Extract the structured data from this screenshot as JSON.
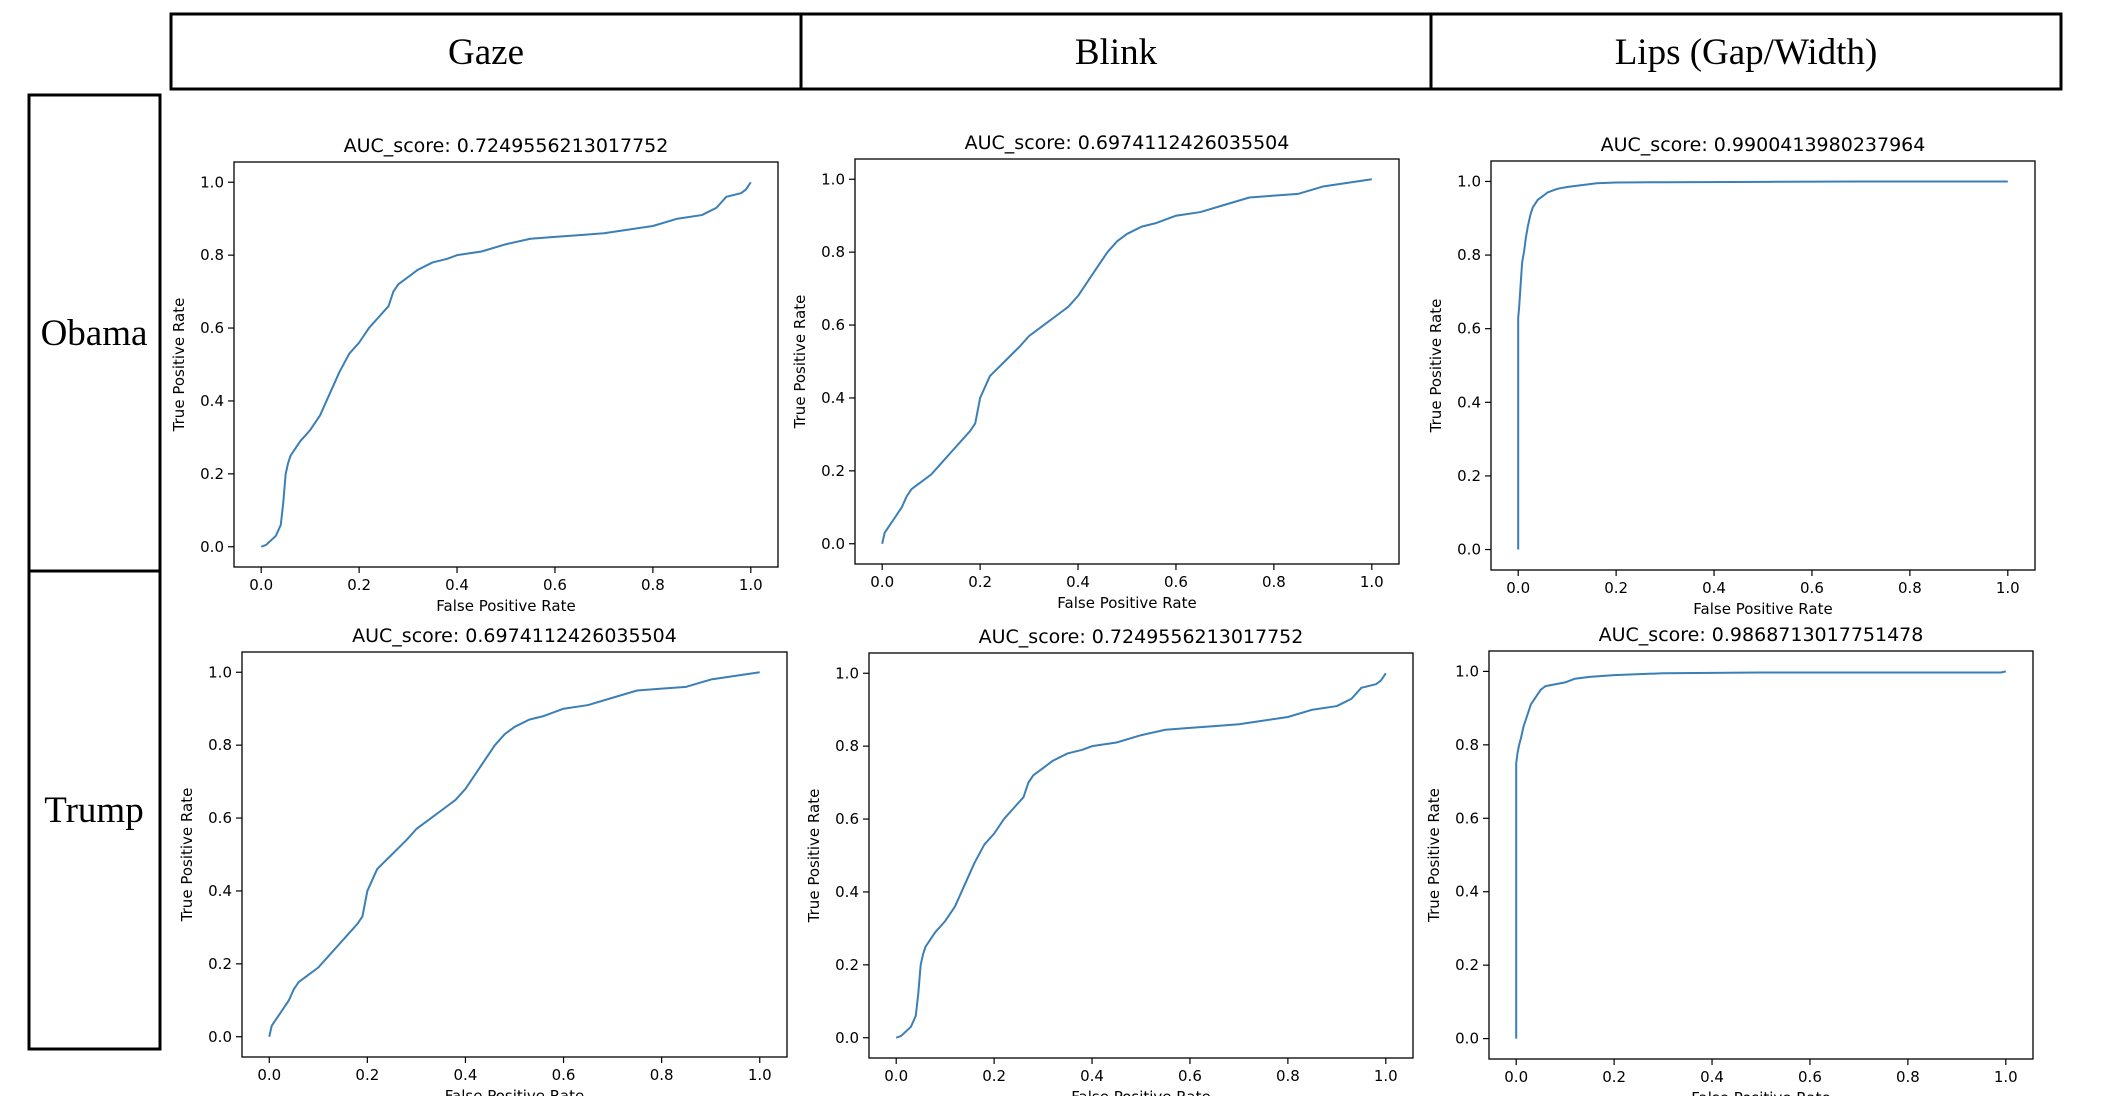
{
  "columns": [
    "Gaze",
    "Blink",
    "Lips (Gap/Width)"
  ],
  "rows": [
    "Obama",
    "Trump"
  ],
  "colors": {
    "line": "#3b7fb6",
    "frame": "#000000"
  },
  "chart_data": [
    {
      "type": "line",
      "row": "Obama",
      "column": "Gaze",
      "title": "AUC_score: 0.7249556213017752",
      "xlabel": "False Positive Rate",
      "ylabel": "True Positive Rate",
      "xlim": [
        0,
        1
      ],
      "ylim": [
        0,
        1
      ],
      "xticks": [
        "0.0",
        "0.2",
        "0.4",
        "0.6",
        "0.8",
        "1.0"
      ],
      "yticks": [
        "0.0",
        "0.2",
        "0.4",
        "0.6",
        "0.8",
        "1.0"
      ],
      "x": [
        0,
        0.01,
        0.03,
        0.04,
        0.045,
        0.05,
        0.055,
        0.06,
        0.07,
        0.08,
        0.1,
        0.12,
        0.14,
        0.16,
        0.18,
        0.2,
        0.22,
        0.24,
        0.26,
        0.27,
        0.28,
        0.3,
        0.32,
        0.35,
        0.38,
        0.4,
        0.45,
        0.5,
        0.55,
        0.6,
        0.65,
        0.7,
        0.75,
        0.8,
        0.85,
        0.9,
        0.93,
        0.95,
        0.98,
        0.99,
        1.0
      ],
      "y": [
        0,
        0.005,
        0.03,
        0.06,
        0.12,
        0.2,
        0.23,
        0.25,
        0.27,
        0.29,
        0.32,
        0.36,
        0.42,
        0.48,
        0.53,
        0.56,
        0.6,
        0.63,
        0.66,
        0.7,
        0.72,
        0.74,
        0.76,
        0.78,
        0.79,
        0.8,
        0.81,
        0.83,
        0.845,
        0.85,
        0.855,
        0.86,
        0.87,
        0.88,
        0.9,
        0.91,
        0.93,
        0.96,
        0.97,
        0.98,
        1.0
      ]
    },
    {
      "type": "line",
      "row": "Obama",
      "column": "Blink",
      "title": "AUC_score: 0.6974112426035504",
      "xlabel": "False Positive Rate",
      "ylabel": "True Positive Rate",
      "xlim": [
        0,
        1
      ],
      "ylim": [
        0,
        1
      ],
      "xticks": [
        "0.0",
        "0.2",
        "0.4",
        "0.6",
        "0.8",
        "1.0"
      ],
      "yticks": [
        "0.0",
        "0.2",
        "0.4",
        "0.6",
        "0.8",
        "1.0"
      ],
      "x": [
        0,
        0.005,
        0.02,
        0.04,
        0.05,
        0.06,
        0.08,
        0.1,
        0.12,
        0.14,
        0.16,
        0.18,
        0.19,
        0.2,
        0.22,
        0.25,
        0.28,
        0.3,
        0.33,
        0.36,
        0.38,
        0.4,
        0.42,
        0.44,
        0.46,
        0.48,
        0.5,
        0.53,
        0.56,
        0.6,
        0.65,
        0.7,
        0.75,
        0.8,
        0.85,
        0.9,
        0.95,
        1.0
      ],
      "y": [
        0,
        0.03,
        0.06,
        0.1,
        0.13,
        0.15,
        0.17,
        0.19,
        0.22,
        0.25,
        0.28,
        0.31,
        0.33,
        0.4,
        0.46,
        0.5,
        0.54,
        0.57,
        0.6,
        0.63,
        0.65,
        0.68,
        0.72,
        0.76,
        0.8,
        0.83,
        0.85,
        0.87,
        0.88,
        0.9,
        0.91,
        0.93,
        0.95,
        0.955,
        0.96,
        0.98,
        0.99,
        1.0
      ]
    },
    {
      "type": "line",
      "row": "Obama",
      "column": "Lips (Gap/Width)",
      "title": "AUC_score: 0.9900413980237964",
      "xlabel": "False Positive Rate",
      "ylabel": "True Positive Rate",
      "xlim": [
        0,
        1
      ],
      "ylim": [
        0,
        1
      ],
      "xticks": [
        "0.0",
        "0.2",
        "0.4",
        "0.6",
        "0.8",
        "1.0"
      ],
      "yticks": [
        "0.0",
        "0.2",
        "0.4",
        "0.6",
        "0.8",
        "1.0"
      ],
      "x": [
        0,
        0.0,
        0.002,
        0.005,
        0.008,
        0.012,
        0.016,
        0.02,
        0.025,
        0.03,
        0.04,
        0.05,
        0.06,
        0.08,
        0.1,
        0.13,
        0.16,
        0.2,
        0.3,
        0.5,
        0.7,
        1.0
      ],
      "y": [
        0,
        0.63,
        0.66,
        0.72,
        0.78,
        0.81,
        0.85,
        0.88,
        0.91,
        0.93,
        0.95,
        0.96,
        0.97,
        0.98,
        0.985,
        0.99,
        0.995,
        0.997,
        0.998,
        0.999,
        1.0,
        1.0
      ]
    },
    {
      "type": "line",
      "row": "Trump",
      "column": "Gaze",
      "title": "AUC_score: 0.6974112426035504",
      "xlabel": "False Positive Rate",
      "ylabel": "True Positive Rate",
      "xlim": [
        0,
        1
      ],
      "ylim": [
        0,
        1
      ],
      "xticks": [
        "0.0",
        "0.2",
        "0.4",
        "0.6",
        "0.8",
        "1.0"
      ],
      "yticks": [
        "0.0",
        "0.2",
        "0.4",
        "0.6",
        "0.8",
        "1.0"
      ],
      "x": [
        0,
        0.005,
        0.02,
        0.04,
        0.05,
        0.06,
        0.08,
        0.1,
        0.12,
        0.14,
        0.16,
        0.18,
        0.19,
        0.2,
        0.22,
        0.25,
        0.28,
        0.3,
        0.33,
        0.36,
        0.38,
        0.4,
        0.42,
        0.44,
        0.46,
        0.48,
        0.5,
        0.53,
        0.56,
        0.6,
        0.65,
        0.7,
        0.75,
        0.8,
        0.85,
        0.9,
        0.95,
        1.0
      ],
      "y": [
        0,
        0.03,
        0.06,
        0.1,
        0.13,
        0.15,
        0.17,
        0.19,
        0.22,
        0.25,
        0.28,
        0.31,
        0.33,
        0.4,
        0.46,
        0.5,
        0.54,
        0.57,
        0.6,
        0.63,
        0.65,
        0.68,
        0.72,
        0.76,
        0.8,
        0.83,
        0.85,
        0.87,
        0.88,
        0.9,
        0.91,
        0.93,
        0.95,
        0.955,
        0.96,
        0.98,
        0.99,
        1.0
      ]
    },
    {
      "type": "line",
      "row": "Trump",
      "column": "Blink",
      "title": "AUC_score: 0.7249556213017752",
      "xlabel": "False Positive Rate",
      "ylabel": "True Positive Rate",
      "xlim": [
        0,
        1
      ],
      "ylim": [
        0,
        1
      ],
      "xticks": [
        "0.0",
        "0.2",
        "0.4",
        "0.6",
        "0.8",
        "1.0"
      ],
      "yticks": [
        "0.0",
        "0.2",
        "0.4",
        "0.6",
        "0.8",
        "1.0"
      ],
      "x": [
        0,
        0.01,
        0.03,
        0.04,
        0.045,
        0.05,
        0.055,
        0.06,
        0.07,
        0.08,
        0.1,
        0.12,
        0.14,
        0.16,
        0.18,
        0.2,
        0.22,
        0.24,
        0.26,
        0.27,
        0.28,
        0.3,
        0.32,
        0.35,
        0.38,
        0.4,
        0.45,
        0.5,
        0.55,
        0.6,
        0.65,
        0.7,
        0.75,
        0.8,
        0.85,
        0.9,
        0.93,
        0.95,
        0.98,
        0.99,
        1.0
      ],
      "y": [
        0,
        0.005,
        0.03,
        0.06,
        0.12,
        0.2,
        0.23,
        0.25,
        0.27,
        0.29,
        0.32,
        0.36,
        0.42,
        0.48,
        0.53,
        0.56,
        0.6,
        0.63,
        0.66,
        0.7,
        0.72,
        0.74,
        0.76,
        0.78,
        0.79,
        0.8,
        0.81,
        0.83,
        0.845,
        0.85,
        0.855,
        0.86,
        0.87,
        0.88,
        0.9,
        0.91,
        0.93,
        0.96,
        0.97,
        0.98,
        1.0
      ]
    },
    {
      "type": "line",
      "row": "Trump",
      "column": "Lips (Gap/Width)",
      "title": "AUC_score: 0.9868713017751478",
      "xlabel": "False Positive Rate",
      "ylabel": "True Positive Rate",
      "xlim": [
        0,
        1
      ],
      "ylim": [
        0,
        1
      ],
      "xticks": [
        "0.0",
        "0.2",
        "0.4",
        "0.6",
        "0.8",
        "1.0"
      ],
      "yticks": [
        "0.0",
        "0.2",
        "0.4",
        "0.6",
        "0.8",
        "1.0"
      ],
      "x": [
        0,
        0.0,
        0.003,
        0.006,
        0.01,
        0.015,
        0.02,
        0.025,
        0.03,
        0.04,
        0.05,
        0.06,
        0.08,
        0.1,
        0.12,
        0.15,
        0.2,
        0.3,
        0.5,
        0.7,
        0.9,
        0.99,
        1.0
      ],
      "y": [
        0,
        0.75,
        0.78,
        0.8,
        0.82,
        0.85,
        0.87,
        0.89,
        0.91,
        0.93,
        0.95,
        0.96,
        0.965,
        0.97,
        0.98,
        0.985,
        0.99,
        0.995,
        0.997,
        0.997,
        0.997,
        0.997,
        1.0
      ]
    }
  ]
}
